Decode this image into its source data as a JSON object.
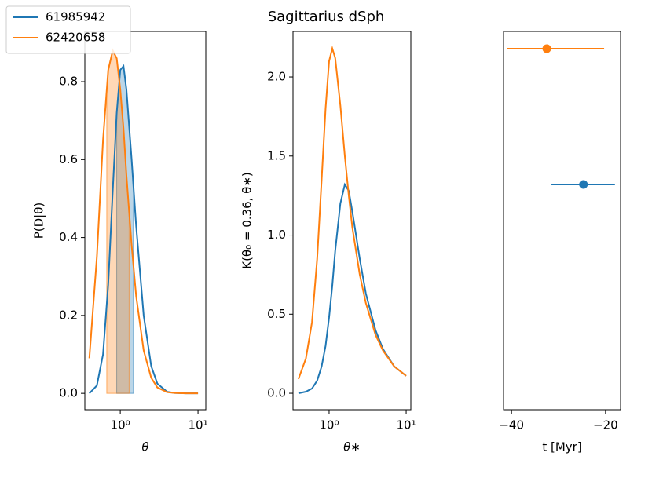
{
  "chart_data": [
    {
      "type": "line",
      "xlabel": "θ",
      "ylabel": "P(D|θ)",
      "xscale": "log",
      "legend": "upper left",
      "xlim": [
        0.35,
        12.6
      ],
      "ylim": [
        -0.042,
        0.929
      ],
      "xticks": [
        {
          "value": 1,
          "label": "10⁰"
        },
        {
          "value": 10,
          "label": "10¹"
        }
      ],
      "yticks": [
        {
          "value": 0,
          "label": "0.0"
        },
        0.2,
        0.4,
        0.6,
        0.8
      ],
      "x": [
        0.4,
        0.5,
        0.6,
        0.7,
        0.8,
        0.9,
        1.0,
        1.1,
        1.2,
        1.4,
        1.6,
        2.0,
        2.5,
        3,
        4,
        5,
        7,
        10
      ],
      "series": [
        {
          "name": "61985942",
          "color": "#1f77b4",
          "fill_range": [
            0.9,
            1.48
          ],
          "values": [
            0.0,
            0.02,
            0.1,
            0.28,
            0.52,
            0.72,
            0.83,
            0.84,
            0.78,
            0.6,
            0.43,
            0.2,
            0.07,
            0.025,
            0.004,
            0.001,
            0,
            0
          ]
        },
        {
          "name": "62420658",
          "color": "#ff7f0e",
          "fill_range": [
            0.67,
            1.3
          ],
          "values": [
            0.09,
            0.35,
            0.65,
            0.83,
            0.88,
            0.86,
            0.78,
            0.68,
            0.56,
            0.38,
            0.25,
            0.11,
            0.04,
            0.015,
            0.003,
            0.001,
            0,
            0
          ]
        }
      ]
    },
    {
      "type": "line",
      "title": "Sagittarius dSph",
      "xlabel": "θ∗",
      "ylabel": "K(θ₀ = 0.36, θ∗)",
      "xscale": "log",
      "xlim": [
        0.34,
        11.5
      ],
      "ylim": [
        -0.104,
        2.288
      ],
      "xticks": [
        {
          "value": 1,
          "label": "10⁰"
        },
        {
          "value": 10,
          "label": "10¹"
        }
      ],
      "yticks": [
        {
          "value": 0,
          "label": "0.0"
        },
        0.5,
        {
          "value": 1,
          "label": "1.0"
        },
        1.5,
        {
          "value": 2,
          "label": "2.0"
        }
      ],
      "x": [
        0.4,
        0.5,
        0.6,
        0.7,
        0.8,
        0.9,
        1.0,
        1.1,
        1.2,
        1.4,
        1.6,
        1.8,
        2.0,
        2.5,
        3,
        4,
        5,
        7,
        10
      ],
      "series": [
        {
          "name": "61985942",
          "color": "#1f77b4",
          "values": [
            0.0,
            0.01,
            0.03,
            0.08,
            0.17,
            0.3,
            0.48,
            0.68,
            0.9,
            1.2,
            1.32,
            1.28,
            1.15,
            0.85,
            0.63,
            0.4,
            0.28,
            0.17,
            0.11
          ]
        },
        {
          "name": "62420658",
          "color": "#ff7f0e",
          "values": [
            0.09,
            0.22,
            0.45,
            0.85,
            1.35,
            1.8,
            2.1,
            2.18,
            2.12,
            1.82,
            1.5,
            1.25,
            1.05,
            0.75,
            0.57,
            0.37,
            0.27,
            0.17,
            0.11
          ]
        }
      ]
    },
    {
      "type": "errorbar",
      "xlabel": "t [Myr]",
      "xlim": [
        -41.7,
        -16.8
      ],
      "ylim": [
        -1.659,
        1.127
      ],
      "xticks": [
        {
          "value": -40,
          "label": "−40"
        },
        {
          "value": -20,
          "label": "−20"
        }
      ],
      "series": [
        {
          "name": "61985942",
          "color": "#1f77b4",
          "x": [
            -24.7
          ],
          "y": [
            0
          ],
          "xerr": [
            [
              6.8,
              6.7
            ]
          ]
        },
        {
          "name": "62420658",
          "color": "#ff7f0e",
          "x": [
            -32.5
          ],
          "y": [
            1
          ],
          "xerr": [
            [
              8.5,
              12.2
            ]
          ]
        }
      ]
    }
  ]
}
